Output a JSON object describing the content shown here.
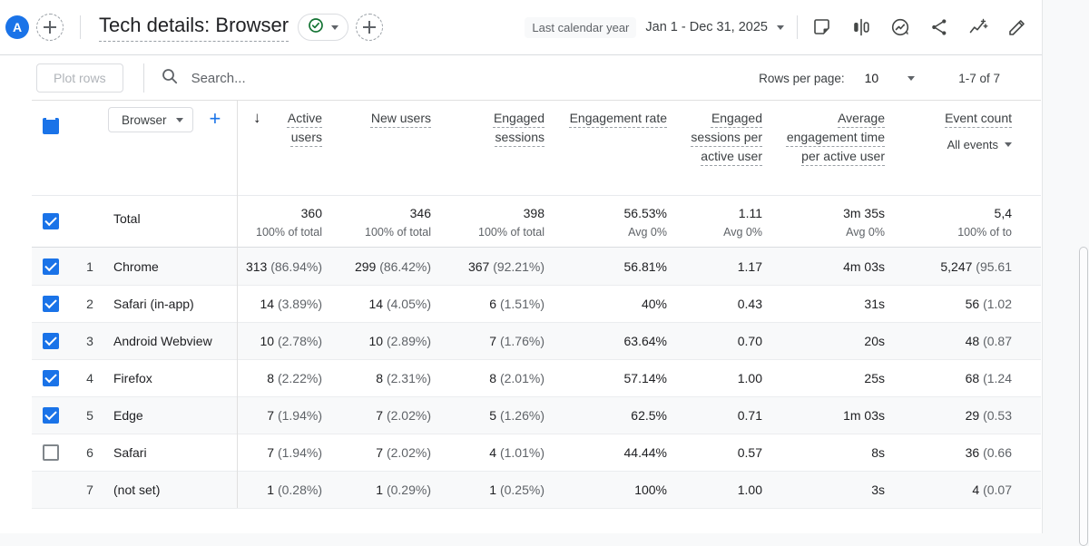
{
  "app": {
    "avatar_letter": "A",
    "title": "Tech details: Browser",
    "date_range_label": "Last calendar year",
    "date_range_value": "Jan 1 - Dec 31, 2025"
  },
  "appbar_icons": [
    "notes-icon",
    "comparison-icon",
    "insights-icon",
    "share-icon",
    "sparkline-insights-icon",
    "edit-icon"
  ],
  "toolbar": {
    "plot_rows_label": "Plot rows",
    "search_placeholder": "Search...",
    "rows_per_page_label": "Rows per page:",
    "rows_per_page_value": "10",
    "pagination": "1-7 of 7"
  },
  "icons": {
    "sort_descending": "↓"
  },
  "colors": {
    "accent": "#1a73e8",
    "success": "#137333"
  },
  "table": {
    "dimension_selector": "Browser",
    "columns": [
      "Active users",
      "New users",
      "Engaged sessions",
      "Engagement rate",
      "Engaged sessions per active user",
      "Average engagement time per active user",
      "Event count"
    ],
    "event_filter": "All events",
    "total": {
      "label": "Total",
      "cells": [
        {
          "value": "360",
          "sub": "100% of total"
        },
        {
          "value": "346",
          "sub": "100% of total"
        },
        {
          "value": "398",
          "sub": "100% of total"
        },
        {
          "value": "56.53%",
          "sub": "Avg 0%"
        },
        {
          "value": "1.11",
          "sub": "Avg 0%"
        },
        {
          "value": "3m 35s",
          "sub": "Avg 0%"
        },
        {
          "value": "5,4",
          "sub": "100% of to"
        }
      ]
    },
    "rows": [
      {
        "num": "1",
        "name": "Chrome",
        "checkbox": "checked",
        "cells": [
          "313 (86.94%)",
          "299 (86.42%)",
          "367 (92.21%)",
          "56.81%",
          "1.17",
          "4m 03s",
          "5,247 (95.61"
        ]
      },
      {
        "num": "2",
        "name": "Safari (in-app)",
        "checkbox": "checked",
        "cells": [
          "14 (3.89%)",
          "14 (4.05%)",
          "6 (1.51%)",
          "40%",
          "0.43",
          "31s",
          "56 (1.02"
        ]
      },
      {
        "num": "3",
        "name": "Android Webview",
        "checkbox": "checked",
        "cells": [
          "10 (2.78%)",
          "10 (2.89%)",
          "7 (1.76%)",
          "63.64%",
          "0.70",
          "20s",
          "48 (0.87"
        ]
      },
      {
        "num": "4",
        "name": "Firefox",
        "checkbox": "checked",
        "cells": [
          "8 (2.22%)",
          "8 (2.31%)",
          "8 (2.01%)",
          "57.14%",
          "1.00",
          "25s",
          "68 (1.24"
        ]
      },
      {
        "num": "5",
        "name": "Edge",
        "checkbox": "checked",
        "cells": [
          "7 (1.94%)",
          "7 (2.02%)",
          "5 (1.26%)",
          "62.5%",
          "0.71",
          "1m 03s",
          "29 (0.53"
        ]
      },
      {
        "num": "6",
        "name": "Safari",
        "checkbox": "unchecked",
        "cells": [
          "7 (1.94%)",
          "7 (2.02%)",
          "4 (1.01%)",
          "44.44%",
          "0.57",
          "8s",
          "36 (0.66"
        ]
      },
      {
        "num": "7",
        "name": "(not set)",
        "checkbox": "none",
        "cells": [
          "1 (0.28%)",
          "1 (0.29%)",
          "1 (0.25%)",
          "100%",
          "1.00",
          "3s",
          "4 (0.07"
        ]
      }
    ]
  }
}
